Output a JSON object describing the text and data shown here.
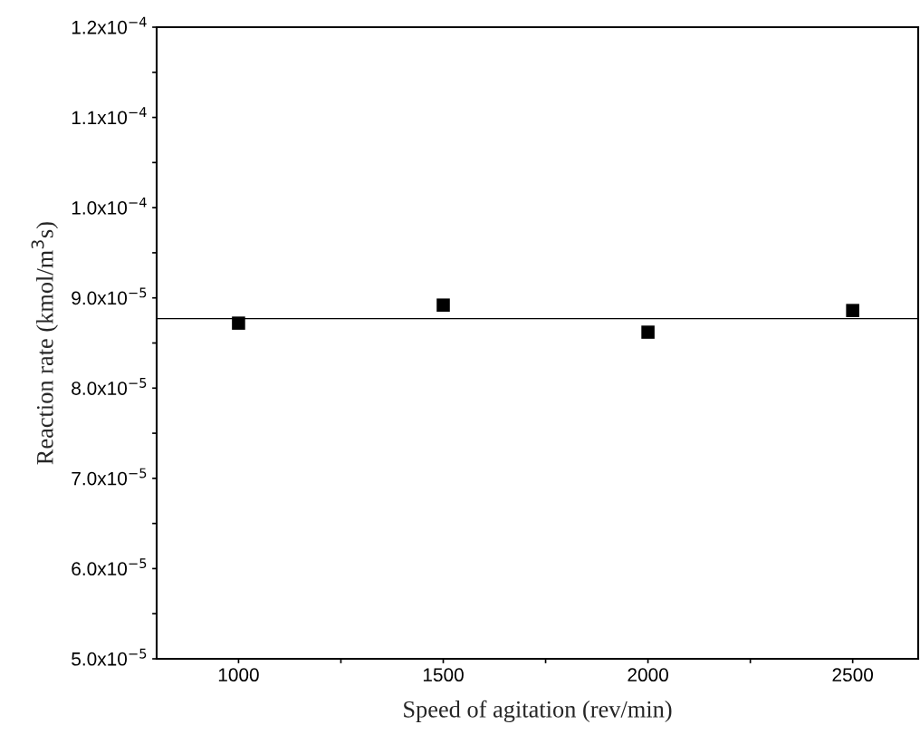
{
  "chart_data": {
    "type": "scatter",
    "xlabel": "Speed of agitation (rev/min)",
    "ylabel": "Reaction rate (kmol/m$^{3}$s)",
    "x": [
      1000,
      1500,
      2000,
      2500
    ],
    "series": [
      {
        "color": "#000000",
        "values": [
          8.72e-05,
          8.92e-05,
          8.62e-05,
          8.86e-05
        ]
      }
    ],
    "marker": "square",
    "ref_lines": [
      {
        "axis": "y",
        "value": 8.77e-05,
        "color": "#000000",
        "line_style": "solid"
      }
    ],
    "xlim": [
      800,
      2660
    ],
    "xticks": [
      1000,
      {
        "value": 1250,
        "label": null
      },
      1500,
      {
        "value": 1750,
        "label": null
      },
      2000,
      {
        "value": 2250,
        "label": null
      },
      2500
    ],
    "ylim": [
      5e-05,
      0.00012
    ],
    "yticks": [
      {
        "value": 5e-05,
        "label": "5.0x10$^{−5}$"
      },
      {
        "value": 5.5e-05,
        "label": null
      },
      {
        "value": 6e-05,
        "label": "6.0x10$^{−5}$"
      },
      {
        "value": 6.5e-05,
        "label": null
      },
      {
        "value": 7e-05,
        "label": "7.0x10$^{−5}$"
      },
      {
        "value": 7.5e-05,
        "label": null
      },
      {
        "value": 8e-05,
        "label": "8.0x10$^{−5}$"
      },
      {
        "value": 8.5e-05,
        "label": null
      },
      {
        "value": 9e-05,
        "label": "9.0x10$^{−5}$"
      },
      {
        "value": 9.5e-05,
        "label": null
      },
      {
        "value": 0.0001,
        "label": "1.0x10$^{−4}$"
      },
      {
        "value": 0.000105,
        "label": null
      },
      {
        "value": 0.00011,
        "label": "1.1x10$^{−4}$"
      },
      {
        "value": 0.000115,
        "label": null
      },
      {
        "value": 0.00012,
        "label": "1.2x10$^{−4}$"
      }
    ],
    "grid": false
  }
}
